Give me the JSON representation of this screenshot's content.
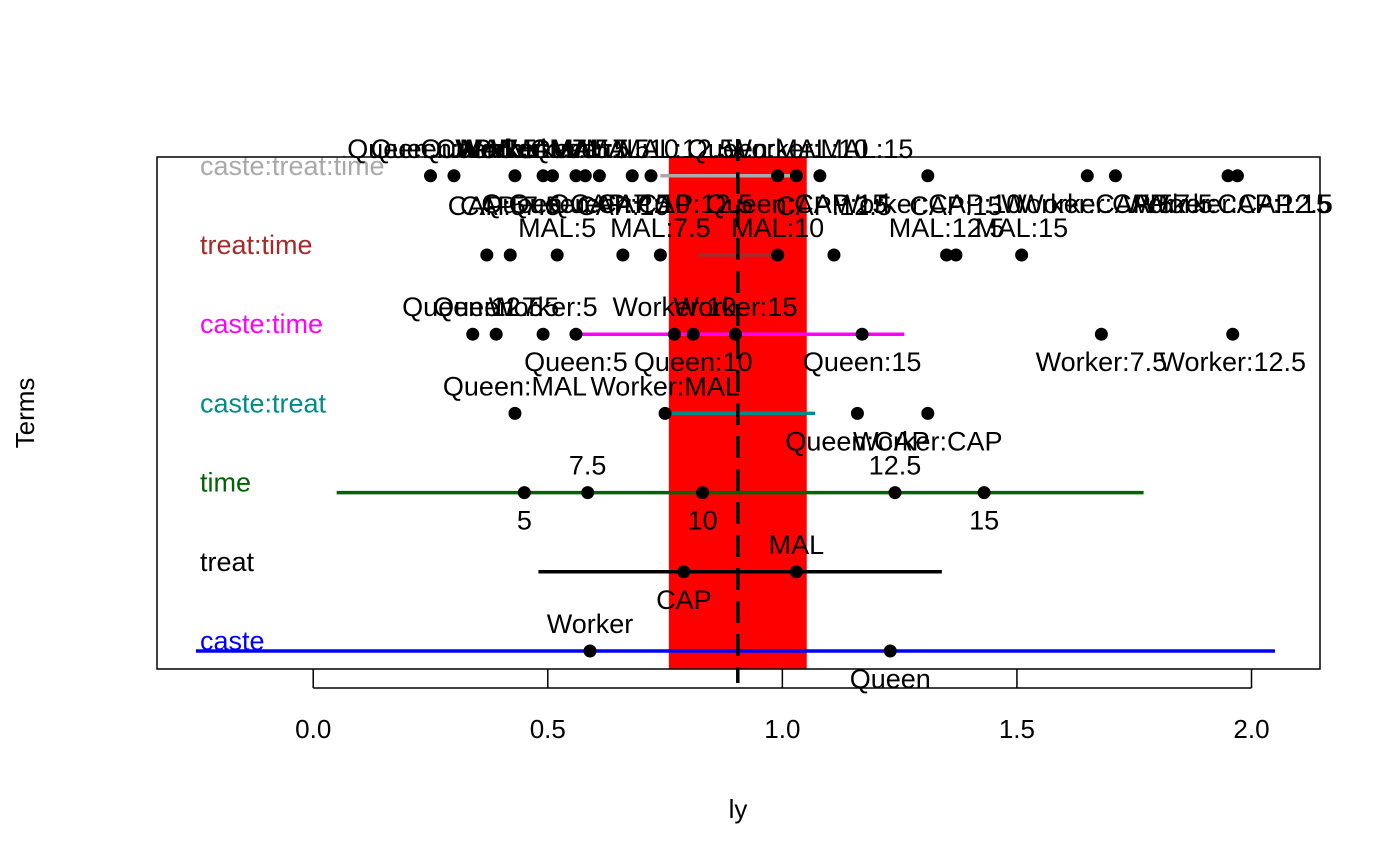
{
  "chart_data": {
    "type": "scatter",
    "xlabel": "ly",
    "ylabel": "Terms",
    "xlim": [
      -0.333,
      2.146
    ],
    "xticks": [
      "0.0",
      "0.5",
      "1.0",
      "1.5",
      "2.0"
    ],
    "xtick_values": [
      0,
      0.5,
      1.0,
      1.5,
      2.0
    ],
    "grand_mean": 0.905,
    "ci_band": [
      0.758,
      1.052
    ],
    "ci_band_color": "#ff0000",
    "terms": [
      {
        "name": "caste",
        "color": "#0000ff",
        "range": [
          -0.25,
          2.05
        ],
        "points": [
          {
            "label": "Worker",
            "x": 0.59,
            "pos": "above"
          },
          {
            "label": "Queen",
            "x": 1.23,
            "pos": "below"
          }
        ]
      },
      {
        "name": "treat",
        "color": "#000000",
        "range": [
          0.48,
          1.34
        ],
        "points": [
          {
            "label": "CAP",
            "x": 0.79,
            "pos": "below"
          },
          {
            "label": "MAL",
            "x": 1.03,
            "pos": "above"
          }
        ]
      },
      {
        "name": "time",
        "color": "#006400",
        "range": [
          0.05,
          1.77
        ],
        "points": [
          {
            "label": "5",
            "x": 0.45,
            "pos": "below"
          },
          {
            "label": "7.5",
            "x": 0.585,
            "pos": "above"
          },
          {
            "label": "10",
            "x": 0.83,
            "pos": "below"
          },
          {
            "label": "12.5",
            "x": 1.24,
            "pos": "above"
          },
          {
            "label": "15",
            "x": 1.43,
            "pos": "below"
          }
        ]
      },
      {
        "name": "caste:treat",
        "color": "#008b8b",
        "range": [
          0.76,
          1.07
        ],
        "points": [
          {
            "label": "Queen:MAL",
            "x": 0.43,
            "pos": "above"
          },
          {
            "label": "Worker:MAL",
            "x": 0.75,
            "pos": "above"
          },
          {
            "label": "Queen:CAP",
            "x": 1.16,
            "pos": "below"
          },
          {
            "label": "Worker:CAP",
            "x": 1.31,
            "pos": "below"
          }
        ]
      },
      {
        "name": "caste:time",
        "color": "#ff00ff",
        "range": [
          0.57,
          1.26
        ],
        "points": [
          {
            "label": "Queen:12.5",
            "x": 0.34,
            "pos": "above"
          },
          {
            "label": "Queen:7.5",
            "x": 0.39,
            "pos": "above"
          },
          {
            "label": "Worker:5",
            "x": 0.49,
            "pos": "above"
          },
          {
            "label": "Queen:5",
            "x": 0.56,
            "pos": "below"
          },
          {
            "label": "Worker:10",
            "x": 0.77,
            "pos": "above"
          },
          {
            "label": "Queen:10",
            "x": 0.81,
            "pos": "below"
          },
          {
            "label": "Worker:15",
            "x": 0.9,
            "pos": "above"
          },
          {
            "label": "Queen:15",
            "x": 1.17,
            "pos": "below"
          },
          {
            "label": "Worker:7.5",
            "x": 1.68,
            "pos": "below"
          },
          {
            "label": "Worker:12.5",
            "x": 1.96,
            "pos": "below"
          }
        ]
      },
      {
        "name": "treat:time",
        "color": "#a52a2a",
        "range": [
          0.82,
          0.99
        ],
        "points": [
          {
            "label": "CAP:5",
            "x": 0.37,
            "pos": "above2"
          },
          {
            "label": "CAP:7.5",
            "x": 0.42,
            "pos": "above2"
          },
          {
            "label": "MAL:5",
            "x": 0.52,
            "pos": "above"
          },
          {
            "label": "CAP:10",
            "x": 0.66,
            "pos": "above2"
          },
          {
            "label": "MAL:7.5",
            "x": 0.74,
            "pos": "above"
          },
          {
            "label": "MAL:10",
            "x": 0.99,
            "pos": "above"
          },
          {
            "label": "CAP:12.5",
            "x": 1.11,
            "pos": "above2"
          },
          {
            "label": "MAL:12.5",
            "x": 1.35,
            "pos": "above"
          },
          {
            "label": "CAP:15",
            "x": 1.37,
            "pos": "above2"
          },
          {
            "label": "MAL:15",
            "x": 1.51,
            "pos": "above"
          }
        ]
      },
      {
        "name": "caste:treat:time",
        "color": "#a9a9a9",
        "range": [
          0.74,
          1.02
        ],
        "points": [
          {
            "label": "Queen:CAP:5",
            "x": 0.25,
            "pos": "above"
          },
          {
            "label": "Queen:MAL:5",
            "x": 0.3,
            "pos": "above"
          },
          {
            "label": "Queen:MAL:7.5",
            "x": 0.43,
            "pos": "above"
          },
          {
            "label": "Worker:MAL:5",
            "x": 0.49,
            "pos": "above"
          },
          {
            "label": "Worker:MAL:7.5",
            "x": 0.51,
            "pos": "above"
          },
          {
            "label": "Queen:CAP:7.5",
            "x": 0.56,
            "pos": "below"
          },
          {
            "label": "Worker:MAL:10",
            "x": 0.58,
            "pos": "above"
          },
          {
            "label": "Queen:CAP:10",
            "x": 0.61,
            "pos": "below"
          },
          {
            "label": "Queen:MAL:12.5",
            "x": 0.68,
            "pos": "above"
          },
          {
            "label": "Queen:CAP:12.5",
            "x": 0.72,
            "pos": "below"
          },
          {
            "label": "Queen:MAL:10",
            "x": 0.99,
            "pos": "above"
          },
          {
            "label": "Queen:CAP:15",
            "x": 1.03,
            "pos": "below"
          },
          {
            "label": "Worker:MAL:15",
            "x": 1.08,
            "pos": "above"
          },
          {
            "label": "Worker:CAP:10",
            "x": 1.31,
            "pos": "below"
          },
          {
            "label": "Worker:CAP:5",
            "x": 1.65,
            "pos": "below"
          },
          {
            "label": "Worker:CAP:7.5",
            "x": 1.71,
            "pos": "below"
          },
          {
            "label": "Worker:CAP:12.5",
            "x": 1.95,
            "pos": "below"
          },
          {
            "label": "Worker:CAP:15",
            "x": 1.97,
            "pos": "below"
          }
        ]
      }
    ]
  }
}
